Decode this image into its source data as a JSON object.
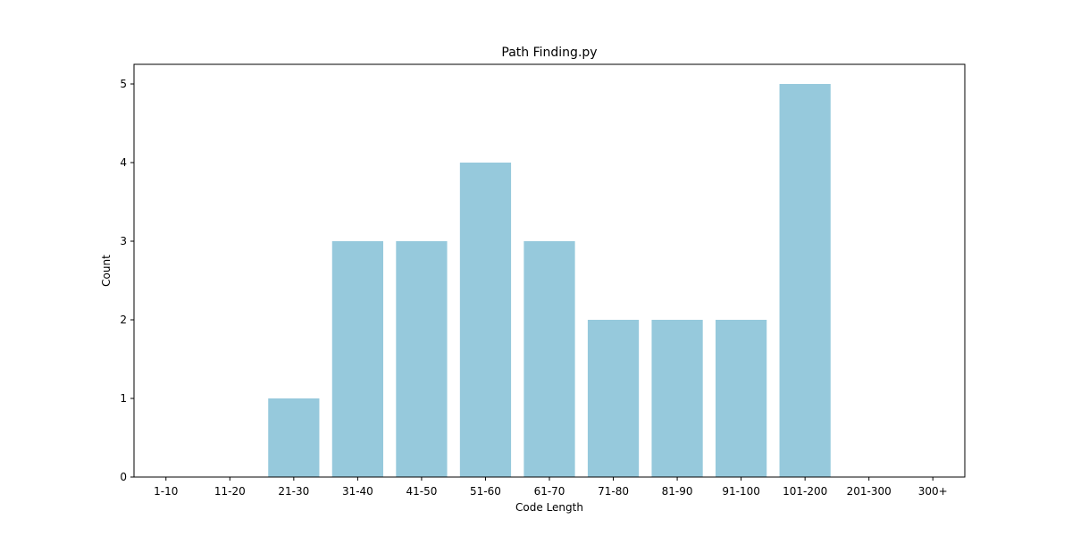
{
  "chart_data": {
    "type": "bar",
    "title": "Path Finding.py",
    "xlabel": "Code Length",
    "ylabel": "Count",
    "categories": [
      "1-10",
      "11-20",
      "21-30",
      "31-40",
      "41-50",
      "51-60",
      "61-70",
      "71-80",
      "81-90",
      "91-100",
      "101-200",
      "201-300",
      "300+"
    ],
    "values": [
      0,
      0,
      1,
      3,
      3,
      4,
      3,
      2,
      2,
      2,
      5,
      0,
      0
    ],
    "ylim": [
      0,
      5.25
    ],
    "yticks": [
      0,
      1,
      2,
      3,
      4,
      5
    ],
    "grid": false,
    "bar_color": "#96c9dc"
  }
}
